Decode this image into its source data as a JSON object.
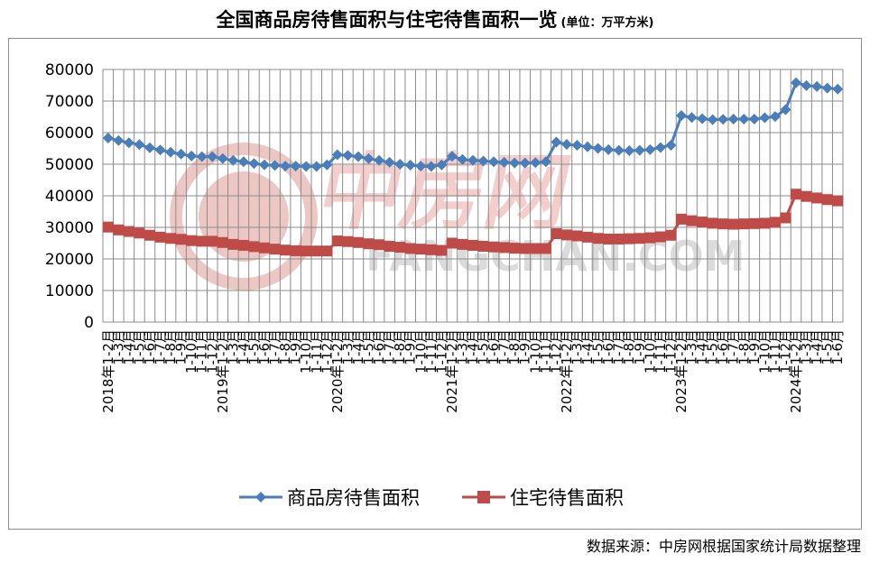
{
  "title": "全国商品房待售面积与住宅待售面积一览",
  "unit": "(单位：万平方米)",
  "source": "数据来源：中房网根据国家统计局数据整理",
  "watermark": {
    "brand_cn": "中房网",
    "brand_en": "FANGCHAN.COM"
  },
  "colors": {
    "series1": "#4a7ebb",
    "series2": "#be4b48",
    "grid": "#8c8c8c"
  },
  "chart_data": {
    "type": "line",
    "ylim": [
      0,
      80000
    ],
    "yticks": [
      0,
      10000,
      20000,
      30000,
      40000,
      50000,
      60000,
      70000,
      80000
    ],
    "ytick_labels": [
      "0",
      "10000",
      "20000",
      "30000",
      "40000",
      "50000",
      "60000",
      "70000",
      "80000"
    ],
    "grid": true,
    "legend": "bottom",
    "year_labels": [
      {
        "label": "2018年",
        "index": 0
      },
      {
        "label": "2019年",
        "index": 11
      },
      {
        "label": "2020年",
        "index": 22
      },
      {
        "label": "2021年",
        "index": 33
      },
      {
        "label": "2022年",
        "index": 44
      },
      {
        "label": "2023年",
        "index": 55
      },
      {
        "label": "2024年",
        "index": 66
      }
    ],
    "categories": [
      "2018年1-2月",
      "1-3月",
      "1-4月",
      "1-5月",
      "1-6月",
      "1-7月",
      "1-8月",
      "1-9月",
      "1-10月",
      "1-11月",
      "1-12月",
      "2019年1-2月",
      "1-3月",
      "1-4月",
      "1-5月",
      "1-6月",
      "1-7月",
      "1-8月",
      "1-9月",
      "1-10月",
      "1-11月",
      "1-12月",
      "2020年1-2月",
      "1-3月",
      "1-4月",
      "1-5月",
      "1-6月",
      "1-7月",
      "1-8月",
      "1-9月",
      "1-10月",
      "1-11月",
      "1-12月",
      "2021年1-2月",
      "1-3月",
      "1-4月",
      "1-5月",
      "1-6月",
      "1-7月",
      "1-8月",
      "1-9月",
      "1-10月",
      "1-11月",
      "1-12月",
      "2022年1-2月",
      "1-3月",
      "1-4月",
      "1-5月",
      "1-6月",
      "1-7月",
      "1-8月",
      "1-9月",
      "1-10月",
      "1-11月",
      "1-12月",
      "2023年1-2月",
      "1-3月",
      "1-4月",
      "1-5月",
      "1-6月",
      "1-7月",
      "1-8月",
      "1-9月",
      "1-10月",
      "1-11月",
      "1-12月",
      "2024年1-2月",
      "1-3月",
      "1-4月",
      "1-5月",
      "1-6月"
    ],
    "series": [
      {
        "name": "商品房待售面积",
        "color": "#4a7ebb",
        "marker": "diamond",
        "values": [
          58300,
          57500,
          56800,
          56200,
          55200,
          54500,
          53800,
          53200,
          52600,
          52400,
          52400,
          51800,
          51200,
          50800,
          50200,
          49800,
          49600,
          49400,
          49400,
          49300,
          49300,
          49800,
          53000,
          52800,
          52400,
          51800,
          51200,
          50600,
          50000,
          49700,
          49400,
          49300,
          49800,
          52500,
          51500,
          51200,
          51000,
          50800,
          50600,
          50400,
          50400,
          50500,
          50800,
          57000,
          56300,
          56000,
          55500,
          55000,
          54600,
          54400,
          54300,
          54400,
          54600,
          55300,
          56000,
          65400,
          64800,
          64400,
          64100,
          64200,
          64300,
          64300,
          64300,
          64700,
          65100,
          67300,
          75800,
          74900,
          74600,
          74100,
          73800
        ]
      },
      {
        "name": "住宅待售面积",
        "color": "#be4b48",
        "marker": "square",
        "values": [
          30100,
          29200,
          28700,
          28200,
          27500,
          26900,
          26500,
          26200,
          25800,
          25600,
          25600,
          25200,
          24600,
          24300,
          23900,
          23500,
          23100,
          22800,
          22600,
          22500,
          22500,
          22500,
          25700,
          25500,
          25200,
          24800,
          24500,
          24000,
          23700,
          23300,
          23100,
          22900,
          22700,
          25000,
          24600,
          24300,
          24000,
          23800,
          23600,
          23400,
          23300,
          23300,
          23300,
          28000,
          27600,
          27300,
          26900,
          26500,
          26300,
          26300,
          26400,
          26500,
          26700,
          27000,
          27500,
          32600,
          32100,
          31700,
          31300,
          31100,
          31000,
          31100,
          31200,
          31300,
          31600,
          33000,
          40500,
          39800,
          39300,
          38800,
          38400
        ]
      }
    ]
  }
}
